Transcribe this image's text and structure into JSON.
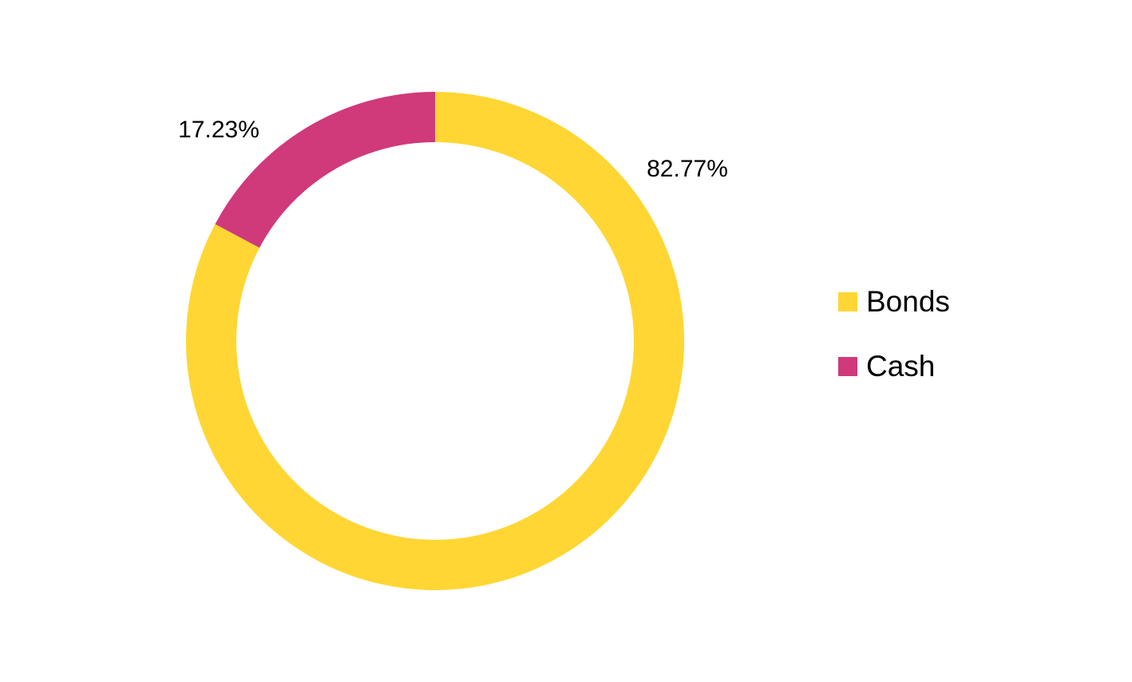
{
  "chart_data": {
    "type": "pie",
    "variant": "donut",
    "series": [
      {
        "name": "Bonds",
        "value": 82.77,
        "label": "82.77%",
        "color": "#FFD633"
      },
      {
        "name": "Cash",
        "value": 17.23,
        "label": "17.23%",
        "color": "#D0397A"
      }
    ],
    "legend_position": "right",
    "title": ""
  }
}
